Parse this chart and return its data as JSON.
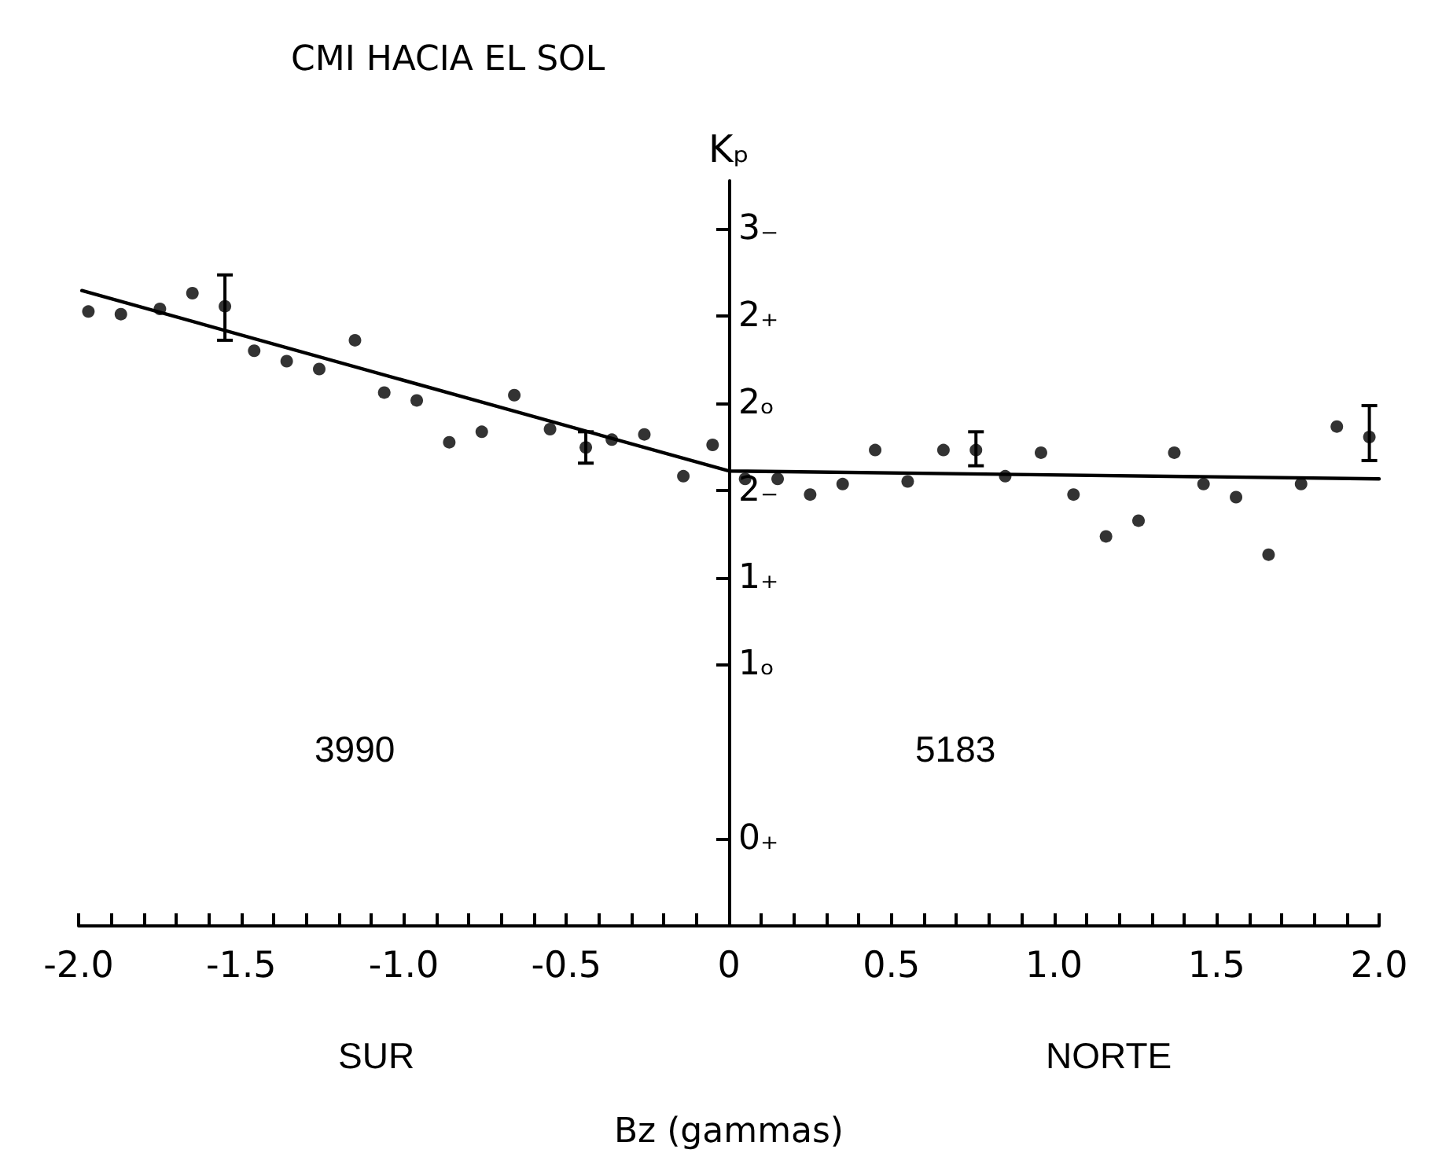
{
  "chart_data": {
    "type": "scatter",
    "title": "CMI HACIA EL SOL",
    "xlabel": "Bz (gammas)",
    "ylabel": "Kₚ",
    "annotations": [
      "3990",
      "5183",
      "SUR",
      "NORTE"
    ],
    "xlim": [
      -2.0,
      2.0
    ],
    "xticks": [
      {
        "value": -2.0,
        "label": "-2.0"
      },
      {
        "value": -1.9,
        "label": null
      },
      {
        "value": -1.8,
        "label": null
      },
      {
        "value": -1.7,
        "label": null
      },
      {
        "value": -1.6,
        "label": null
      },
      {
        "value": -1.5,
        "label": "-1.5"
      },
      {
        "value": -1.4,
        "label": null
      },
      {
        "value": -1.3,
        "label": null
      },
      {
        "value": -1.2,
        "label": null
      },
      {
        "value": -1.1,
        "label": null
      },
      {
        "value": -1.0,
        "label": "-1.0"
      },
      {
        "value": -0.9,
        "label": null
      },
      {
        "value": -0.8,
        "label": null
      },
      {
        "value": -0.7,
        "label": null
      },
      {
        "value": -0.6,
        "label": null
      },
      {
        "value": -0.5,
        "label": "-0.5"
      },
      {
        "value": -0.4,
        "label": null
      },
      {
        "value": -0.3,
        "label": null
      },
      {
        "value": -0.2,
        "label": null
      },
      {
        "value": -0.1,
        "label": null
      },
      0,
      {
        "value": 0.1,
        "label": null
      },
      {
        "value": 0.2,
        "label": null
      },
      {
        "value": 0.3,
        "label": null
      },
      {
        "value": 0.4,
        "label": null
      },
      0.5,
      {
        "value": 0.6,
        "label": null
      },
      {
        "value": 0.7,
        "label": null
      },
      {
        "value": 0.8,
        "label": null
      },
      {
        "value": 0.9,
        "label": null
      },
      {
        "value": 1.0,
        "label": "1.0"
      },
      {
        "value": 1.1,
        "label": null
      },
      {
        "value": 1.2,
        "label": null
      },
      {
        "value": 1.3,
        "label": null
      },
      {
        "value": 1.4,
        "label": null
      },
      1.5,
      {
        "value": 1.6,
        "label": null
      },
      {
        "value": 1.7,
        "label": null
      },
      {
        "value": 1.8,
        "label": null
      },
      {
        "value": 1.9,
        "label": null
      },
      {
        "value": 2.0,
        "label": "2.0"
      }
    ],
    "ylim": [
      0,
      2.85
    ],
    "yticks": [
      {
        "value": 0.333,
        "label": "0₊"
      },
      {
        "value": 1.0,
        "label": "1ₒ"
      },
      {
        "value": 1.333,
        "label": "1₊"
      },
      {
        "value": 1.667,
        "label": "2₋"
      },
      {
        "value": 2.0,
        "label": "2ₒ"
      },
      {
        "value": 2.333,
        "label": "2₊"
      },
      {
        "value": 2.667,
        "label": "3₋"
      }
    ],
    "marker": "circle",
    "series": [
      {
        "color": "#000000",
        "x": [
          -1.97,
          -1.87,
          -1.75,
          -1.65,
          -1.55,
          -1.46,
          -1.36,
          -1.26,
          -1.15,
          -1.06,
          -0.96,
          -0.86,
          -0.76,
          -0.66,
          -0.55,
          -0.44,
          -0.36,
          -0.26,
          -0.14,
          -0.05,
          0.05,
          0.15,
          0.25,
          0.35,
          0.45,
          0.55,
          0.66,
          0.76,
          0.85,
          0.96,
          1.06,
          1.16,
          1.26,
          1.37,
          1.46,
          1.56,
          1.66,
          1.76,
          1.87,
          1.97
        ],
        "values": [
          2.35,
          2.34,
          2.36,
          2.42,
          2.37,
          2.2,
          2.16,
          2.13,
          2.24,
          2.04,
          2.01,
          1.85,
          1.89,
          2.03,
          1.9,
          1.83,
          1.86,
          1.88,
          1.72,
          1.84,
          1.71,
          1.71,
          1.65,
          1.69,
          1.82,
          1.7,
          1.82,
          1.82,
          1.72,
          1.81,
          1.65,
          1.49,
          1.55,
          1.81,
          1.69,
          1.64,
          1.42,
          1.69,
          1.91,
          1.87
        ],
        "errors": [
          null,
          null,
          null,
          null,
          [
            2.24,
            2.49
          ],
          null,
          null,
          null,
          null,
          null,
          null,
          null,
          null,
          null,
          null,
          [
            1.77,
            1.89
          ],
          null,
          null,
          null,
          null,
          null,
          null,
          null,
          null,
          null,
          null,
          null,
          [
            1.76,
            1.89
          ],
          null,
          null,
          null,
          null,
          null,
          null,
          null,
          null,
          null,
          null,
          null,
          [
            1.78,
            1.99
          ]
        ]
      },
      {
        "type": "line",
        "color": "#000000",
        "marker": "none",
        "line_style": "solid",
        "x": [
          -1.99,
          0,
          2.0
        ],
        "values": [
          2.43,
          1.74,
          1.71
        ]
      }
    ]
  }
}
